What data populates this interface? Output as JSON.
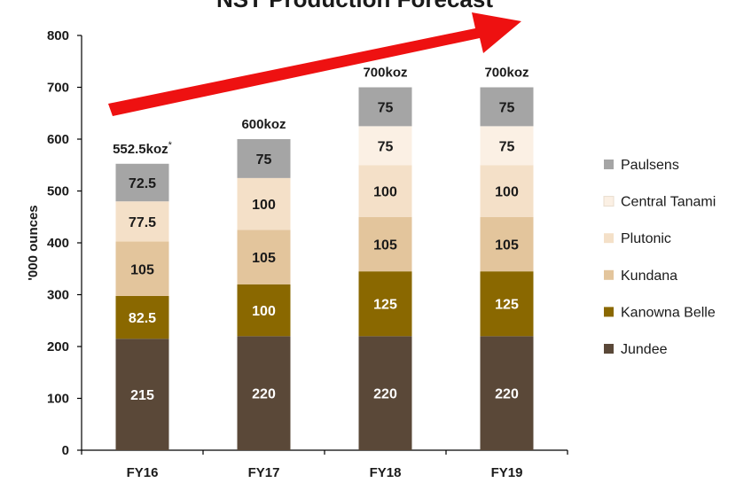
{
  "chart_data": {
    "type": "stacked_bar",
    "title": "NST Production Forecast",
    "y_label": "'000 ounces",
    "categories": [
      "FY16",
      "FY17",
      "FY18",
      "FY19"
    ],
    "series": [
      {
        "name": "Jundee",
        "color": "#5a4838",
        "values": [
          215,
          220,
          220,
          220
        ]
      },
      {
        "name": "Kanowna Belle",
        "color": "#8a6800",
        "values": [
          82.5,
          100,
          125,
          125
        ]
      },
      {
        "name": "Kundana",
        "color": "#e3c59c",
        "values": [
          105,
          105,
          105,
          105
        ]
      },
      {
        "name": "Plutonic",
        "color": "#f4e0c8",
        "values": [
          77.5,
          100,
          100,
          100
        ]
      },
      {
        "name": "Central Tanami",
        "color": "#fbf0e4",
        "values": [
          null,
          null,
          75,
          75
        ]
      },
      {
        "name": "Paulsens",
        "color": "#a5a5a5",
        "values": [
          72.5,
          75,
          75,
          75
        ]
      }
    ],
    "total_labels": [
      "552.5koz",
      "600koz",
      "700koz",
      "700koz"
    ],
    "footnote_marker": "*",
    "ylim": [
      0,
      800
    ],
    "yticks": [
      0,
      100,
      200,
      300,
      400,
      500,
      600,
      700,
      800
    ],
    "grid": false,
    "legend": "right"
  }
}
